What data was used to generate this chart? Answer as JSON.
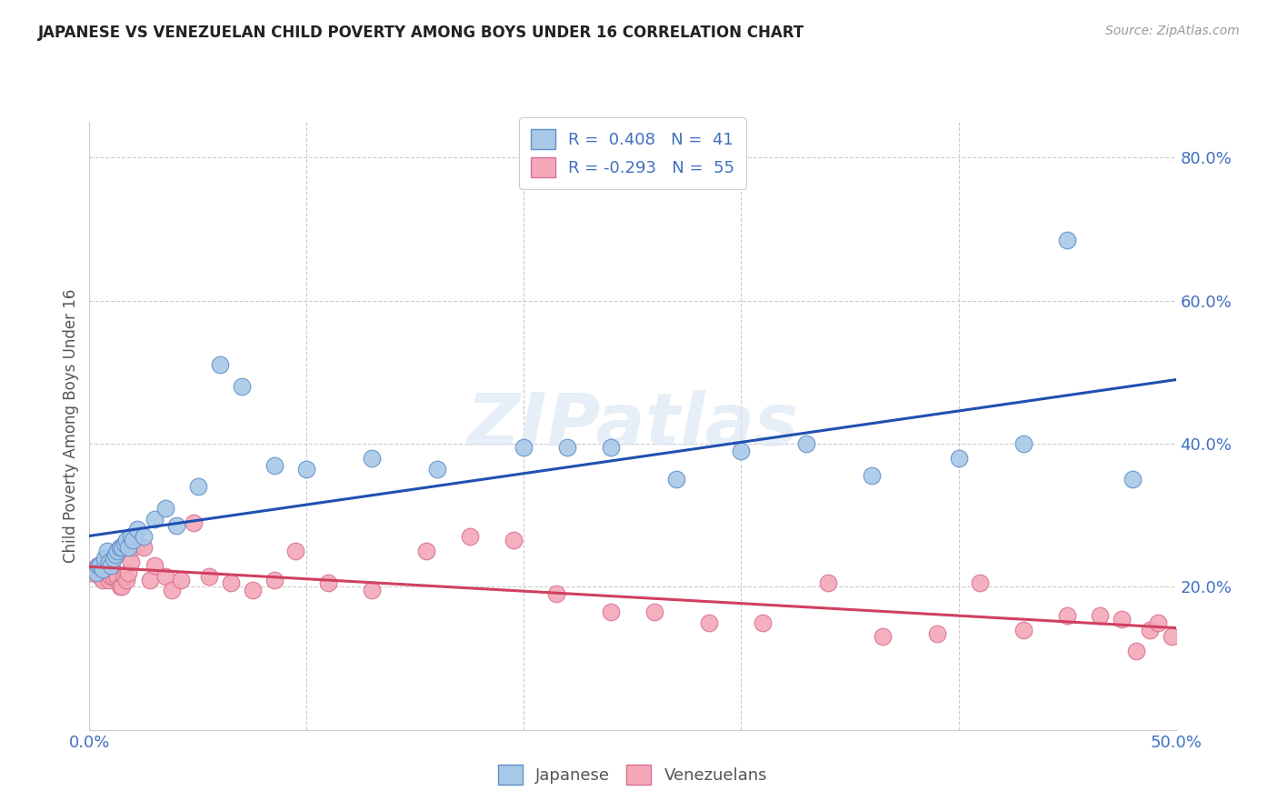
{
  "title": "JAPANESE VS VENEZUELAN CHILD POVERTY AMONG BOYS UNDER 16 CORRELATION CHART",
  "source": "Source: ZipAtlas.com",
  "ylabel": "Child Poverty Among Boys Under 16",
  "xlim": [
    0.0,
    0.5
  ],
  "ylim": [
    0.0,
    0.85
  ],
  "legend_label1": "Japanese",
  "legend_label2": "Venezuelans",
  "japanese_color": "#a8c8e8",
  "venezuelan_color": "#f4a8b8",
  "japanese_edge": "#6090c8",
  "venezuelan_edge": "#d87090",
  "trend_japanese_color": "#2050b0",
  "trend_venezuelan_color": "#d04060",
  "watermark": "ZIPatlas",
  "leg_text1": "R =  0.408   N =  41",
  "leg_text2": "R = -0.293   N =  55",
  "japanese_x": [
    0.003,
    0.004,
    0.005,
    0.006,
    0.007,
    0.008,
    0.009,
    0.01,
    0.011,
    0.012,
    0.013,
    0.014,
    0.015,
    0.016,
    0.017,
    0.018,
    0.019,
    0.02,
    0.022,
    0.025,
    0.03,
    0.035,
    0.04,
    0.05,
    0.06,
    0.07,
    0.085,
    0.1,
    0.13,
    0.16,
    0.2,
    0.22,
    0.24,
    0.27,
    0.3,
    0.33,
    0.36,
    0.4,
    0.43,
    0.45,
    0.48
  ],
  "japanese_y": [
    0.22,
    0.23,
    0.23,
    0.225,
    0.24,
    0.25,
    0.235,
    0.23,
    0.24,
    0.245,
    0.25,
    0.255,
    0.255,
    0.26,
    0.265,
    0.255,
    0.27,
    0.265,
    0.28,
    0.27,
    0.295,
    0.31,
    0.285,
    0.34,
    0.51,
    0.48,
    0.37,
    0.365,
    0.38,
    0.365,
    0.395,
    0.395,
    0.395,
    0.35,
    0.39,
    0.4,
    0.355,
    0.38,
    0.4,
    0.685,
    0.35
  ],
  "venezuelan_x": [
    0.001,
    0.002,
    0.003,
    0.004,
    0.005,
    0.006,
    0.007,
    0.008,
    0.009,
    0.01,
    0.011,
    0.012,
    0.013,
    0.014,
    0.015,
    0.016,
    0.017,
    0.018,
    0.019,
    0.02,
    0.022,
    0.025,
    0.028,
    0.03,
    0.035,
    0.038,
    0.042,
    0.048,
    0.055,
    0.065,
    0.075,
    0.085,
    0.095,
    0.11,
    0.13,
    0.155,
    0.175,
    0.195,
    0.215,
    0.24,
    0.26,
    0.285,
    0.31,
    0.34,
    0.365,
    0.39,
    0.41,
    0.43,
    0.45,
    0.465,
    0.475,
    0.482,
    0.488,
    0.492,
    0.498
  ],
  "venezuelan_y": [
    0.22,
    0.225,
    0.225,
    0.23,
    0.215,
    0.21,
    0.22,
    0.22,
    0.21,
    0.215,
    0.215,
    0.22,
    0.215,
    0.2,
    0.2,
    0.215,
    0.21,
    0.22,
    0.235,
    0.255,
    0.26,
    0.255,
    0.21,
    0.23,
    0.215,
    0.195,
    0.21,
    0.29,
    0.215,
    0.205,
    0.195,
    0.21,
    0.25,
    0.205,
    0.195,
    0.25,
    0.27,
    0.265,
    0.19,
    0.165,
    0.165,
    0.15,
    0.15,
    0.205,
    0.13,
    0.135,
    0.205,
    0.14,
    0.16,
    0.16,
    0.155,
    0.11,
    0.14,
    0.15,
    0.13
  ]
}
